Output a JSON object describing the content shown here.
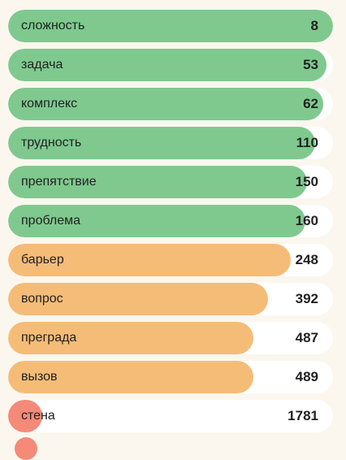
{
  "colors": {
    "green": "#7fc98f",
    "orange": "#f5bc78",
    "red": "#f58a78",
    "track": "#ffffff",
    "background": "#fbf7ee"
  },
  "items": [
    {
      "label": "сложность",
      "value": "8",
      "fill": 1.0,
      "color": "green"
    },
    {
      "label": "задача",
      "value": "53",
      "fill": 0.98,
      "color": "green"
    },
    {
      "label": "комплекс",
      "value": "62",
      "fill": 0.97,
      "color": "green"
    },
    {
      "label": "трудность",
      "value": "110",
      "fill": 0.945,
      "color": "green"
    },
    {
      "label": "препятствие",
      "value": "150",
      "fill": 0.92,
      "color": "green"
    },
    {
      "label": "проблема",
      "value": "160",
      "fill": 0.915,
      "color": "green"
    },
    {
      "label": "барьер",
      "value": "248",
      "fill": 0.87,
      "color": "orange"
    },
    {
      "label": "вопрос",
      "value": "392",
      "fill": 0.8,
      "color": "orange"
    },
    {
      "label": "преграда",
      "value": "487",
      "fill": 0.755,
      "color": "orange"
    },
    {
      "label": "вызов",
      "value": "489",
      "fill": 0.755,
      "color": "orange"
    },
    {
      "label": "стена",
      "value": "1781",
      "fill": 0.105,
      "color": "red"
    }
  ]
}
